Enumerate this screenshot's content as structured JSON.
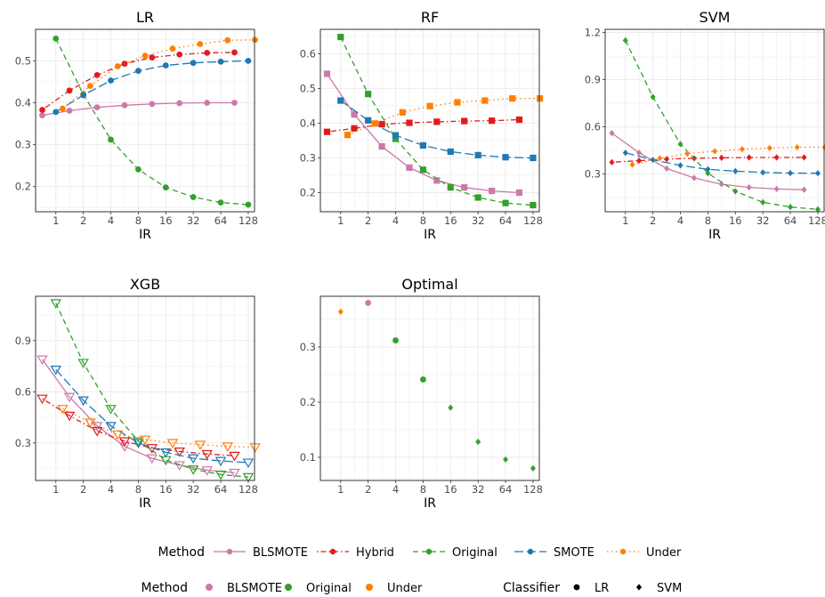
{
  "colors": {
    "BLSMOTE": "#CC79A7",
    "Hybrid": "#E31A1C",
    "Original": "#33A02C",
    "SMOTE": "#1F78B4",
    "Under": "#FF7F00",
    "panel_bg": "#FFFFFF",
    "grid": "#EBEBEB",
    "axis_text": "#4D4D4D"
  },
  "legend": {
    "line_title": "Method",
    "line_entries": [
      {
        "method": "BLSMOTE",
        "label": "BLSMOTE",
        "dash": "solid"
      },
      {
        "method": "Hybrid",
        "label": "Hybrid",
        "dash": "dotdash"
      },
      {
        "method": "Original",
        "label": "Original",
        "dash": "dashed"
      },
      {
        "method": "SMOTE",
        "label": "SMOTE",
        "dash": "longdash"
      },
      {
        "method": "Under",
        "label": "Under",
        "dash": "dotted"
      }
    ],
    "point_method_title": "Method",
    "point_method_entries": [
      "BLSMOTE",
      "Original",
      "Under"
    ],
    "classifier_title": "Classifier",
    "classifier_entries": [
      {
        "label": "LR",
        "shape": "circle"
      },
      {
        "label": "SVM",
        "shape": "diamond"
      }
    ]
  },
  "chart_data": [
    {
      "type": "line",
      "title": "LR",
      "xlabel": "IR",
      "x_scale": "log2",
      "x_ticks": [
        "1",
        "2",
        "4",
        "8",
        "16",
        "32",
        "64",
        "128"
      ],
      "xlim": [
        0.6,
        150
      ],
      "y_ticks": [
        0.2,
        0.3,
        0.4,
        0.5
      ],
      "ylim": [
        0.14,
        0.575
      ],
      "marker": "circle",
      "series": [
        {
          "name": "BLSMOTE",
          "x": [
            0.71,
            1.41,
            2.83,
            5.66,
            11.3,
            22.6,
            45.3,
            90.5
          ],
          "y": [
            0.37,
            0.381,
            0.389,
            0.394,
            0.397,
            0.399,
            0.4,
            0.4
          ]
        },
        {
          "name": "Hybrid",
          "x": [
            0.71,
            1.41,
            2.83,
            5.66,
            11.3,
            22.6,
            45.3,
            90.5
          ],
          "y": [
            0.383,
            0.429,
            0.466,
            0.493,
            0.508,
            0.515,
            0.519,
            0.52
          ]
        },
        {
          "name": "Original",
          "x": [
            1,
            2,
            4,
            8,
            16,
            32,
            64,
            128
          ],
          "y": [
            0.553,
            0.42,
            0.312,
            0.241,
            0.198,
            0.175,
            0.162,
            0.157
          ]
        },
        {
          "name": "SMOTE",
          "x": [
            1,
            2,
            4,
            8,
            16,
            32,
            64,
            128
          ],
          "y": [
            0.378,
            0.418,
            0.453,
            0.476,
            0.489,
            0.495,
            0.498,
            0.5
          ]
        },
        {
          "name": "Under",
          "x": [
            1.19,
            2.38,
            4.76,
            9.51,
            19,
            38,
            76,
            152
          ],
          "y": [
            0.386,
            0.44,
            0.487,
            0.512,
            0.529,
            0.54,
            0.549,
            0.55
          ]
        }
      ]
    },
    {
      "type": "line",
      "title": "RF",
      "xlabel": "IR",
      "x_scale": "log2",
      "x_ticks": [
        "1",
        "2",
        "4",
        "8",
        "16",
        "32",
        "64",
        "128"
      ],
      "xlim": [
        0.6,
        150
      ],
      "y_ticks": [
        0.2,
        0.3,
        0.4,
        0.5,
        0.6
      ],
      "ylim": [
        0.145,
        0.67
      ],
      "marker": "square",
      "series": [
        {
          "name": "BLSMOTE",
          "x": [
            0.71,
            1.41,
            2.83,
            5.66,
            11.3,
            22.6,
            45.3,
            90.5
          ],
          "y": [
            0.542,
            0.425,
            0.333,
            0.272,
            0.235,
            0.215,
            0.205,
            0.2
          ]
        },
        {
          "name": "Hybrid",
          "x": [
            0.71,
            1.41,
            2.83,
            5.66,
            11.3,
            22.6,
            45.3,
            90.5
          ],
          "y": [
            0.375,
            0.385,
            0.397,
            0.401,
            0.404,
            0.406,
            0.407,
            0.41
          ]
        },
        {
          "name": "Original",
          "x": [
            1,
            2,
            4,
            8,
            16,
            32,
            64,
            128
          ],
          "y": [
            0.648,
            0.484,
            0.355,
            0.266,
            0.215,
            0.186,
            0.17,
            0.164
          ]
        },
        {
          "name": "SMOTE",
          "x": [
            1,
            2,
            4,
            8,
            16,
            32,
            64,
            128
          ],
          "y": [
            0.465,
            0.408,
            0.365,
            0.336,
            0.318,
            0.308,
            0.302,
            0.3
          ]
        },
        {
          "name": "Under",
          "x": [
            1.19,
            2.38,
            4.76,
            9.51,
            19,
            38,
            76,
            152
          ],
          "y": [
            0.366,
            0.399,
            0.431,
            0.449,
            0.46,
            0.465,
            0.471,
            0.471
          ]
        }
      ]
    },
    {
      "type": "line",
      "title": "SVM",
      "xlabel": "IR",
      "x_scale": "log2",
      "x_ticks": [
        "1",
        "2",
        "4",
        "8",
        "16",
        "32",
        "64",
        "128"
      ],
      "xlim": [
        0.6,
        150
      ],
      "y_ticks": [
        0.3,
        0.6,
        0.9,
        1.2
      ],
      "ylim": [
        0.06,
        1.22
      ],
      "marker": "diamond",
      "series": [
        {
          "name": "BLSMOTE",
          "x": [
            0.71,
            1.41,
            2.83,
            5.66,
            11.3,
            22.6,
            45.3,
            90.5
          ],
          "y": [
            0.56,
            0.435,
            0.335,
            0.275,
            0.235,
            0.215,
            0.205,
            0.2
          ]
        },
        {
          "name": "Hybrid",
          "x": [
            0.71,
            1.41,
            2.83,
            5.66,
            11.3,
            22.6,
            45.3,
            90.5
          ],
          "y": [
            0.375,
            0.385,
            0.395,
            0.4,
            0.403,
            0.405,
            0.405,
            0.406
          ]
        },
        {
          "name": "Original",
          "x": [
            1,
            2,
            4,
            8,
            16,
            32,
            64,
            128
          ],
          "y": [
            1.15,
            0.79,
            0.49,
            0.305,
            0.19,
            0.12,
            0.09,
            0.075
          ]
        },
        {
          "name": "SMOTE",
          "x": [
            1,
            2,
            4,
            8,
            16,
            32,
            64,
            128
          ],
          "y": [
            0.435,
            0.39,
            0.355,
            0.33,
            0.318,
            0.31,
            0.306,
            0.305
          ]
        },
        {
          "name": "Under",
          "x": [
            1.19,
            2.38,
            4.76,
            9.51,
            19,
            38,
            76,
            152
          ],
          "y": [
            0.36,
            0.4,
            0.43,
            0.445,
            0.458,
            0.465,
            0.47,
            0.47
          ]
        }
      ]
    },
    {
      "type": "line",
      "title": "XGB",
      "xlabel": "IR",
      "x_scale": "log2",
      "x_ticks": [
        "1",
        "2",
        "4",
        "8",
        "16",
        "32",
        "64",
        "128"
      ],
      "xlim": [
        0.6,
        150
      ],
      "y_ticks": [
        0.3,
        0.6,
        0.9
      ],
      "ylim": [
        0.08,
        1.16
      ],
      "marker": "triangle-down-open",
      "series": [
        {
          "name": "BLSMOTE",
          "x": [
            0.71,
            1.41,
            2.83,
            5.66,
            11.3,
            22.6,
            45.3,
            90.5
          ],
          "y": [
            0.79,
            0.57,
            0.4,
            0.28,
            0.21,
            0.17,
            0.14,
            0.125
          ]
        },
        {
          "name": "Hybrid",
          "x": [
            0.71,
            1.41,
            2.83,
            5.66,
            11.3,
            22.6,
            45.3,
            90.5
          ],
          "y": [
            0.56,
            0.46,
            0.37,
            0.31,
            0.27,
            0.25,
            0.235,
            0.225
          ]
        },
        {
          "name": "Original",
          "x": [
            1,
            2,
            4,
            8,
            16,
            32,
            64,
            128
          ],
          "y": [
            1.12,
            0.77,
            0.5,
            0.31,
            0.2,
            0.145,
            0.115,
            0.1
          ]
        },
        {
          "name": "SMOTE",
          "x": [
            1,
            2,
            4,
            8,
            16,
            32,
            64,
            128
          ],
          "y": [
            0.73,
            0.55,
            0.4,
            0.3,
            0.245,
            0.21,
            0.195,
            0.185
          ]
        },
        {
          "name": "Under",
          "x": [
            1.19,
            2.38,
            4.76,
            9.51,
            19,
            38,
            76,
            152
          ],
          "y": [
            0.5,
            0.42,
            0.35,
            0.32,
            0.3,
            0.29,
            0.28,
            0.275
          ]
        }
      ]
    },
    {
      "type": "scatter",
      "title": "Optimal",
      "xlabel": "IR",
      "x_scale": "log2",
      "x_ticks": [
        "1",
        "2",
        "4",
        "8",
        "16",
        "32",
        "64",
        "128"
      ],
      "xlim": [
        0.6,
        150
      ],
      "y_ticks": [
        0.1,
        0.2,
        0.3
      ],
      "ylim": [
        0.058,
        0.392
      ],
      "points": [
        {
          "method": "Under",
          "classifier": "SVM",
          "x": 1,
          "y": 0.364
        },
        {
          "method": "BLSMOTE",
          "classifier": "LR",
          "x": 2,
          "y": 0.38
        },
        {
          "method": "Original",
          "classifier": "LR",
          "x": 4,
          "y": 0.312
        },
        {
          "method": "Original",
          "classifier": "LR",
          "x": 8,
          "y": 0.241
        },
        {
          "method": "Original",
          "classifier": "SVM",
          "x": 16,
          "y": 0.19
        },
        {
          "method": "Original",
          "classifier": "SVM",
          "x": 32,
          "y": 0.128
        },
        {
          "method": "Original",
          "classifier": "SVM",
          "x": 64,
          "y": 0.096
        },
        {
          "method": "Original",
          "classifier": "SVM",
          "x": 128,
          "y": 0.08
        }
      ]
    }
  ]
}
